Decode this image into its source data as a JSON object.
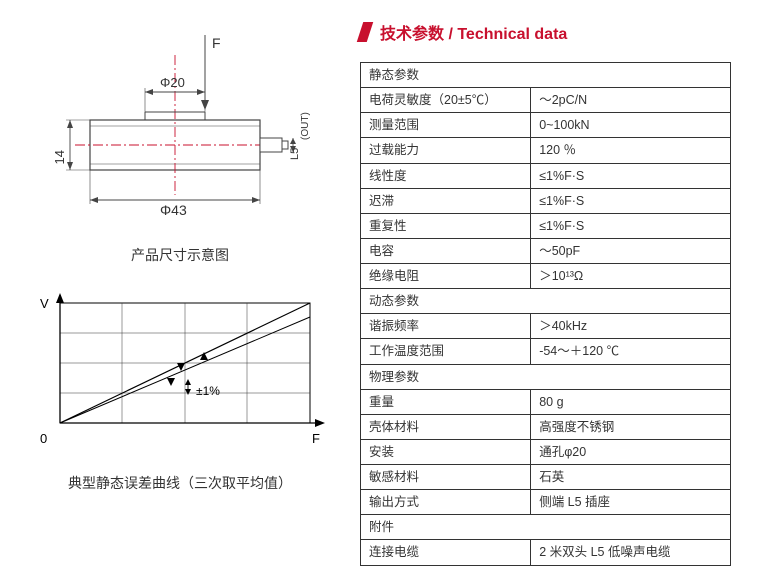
{
  "title": "技术参数 / Technical data",
  "dimension_diagram": {
    "caption": "产品尺寸示意图",
    "force_label": "F",
    "dim_top": "Φ20",
    "dim_bottom": "Φ43",
    "dim_height": "14",
    "dim_plug_h": "L5",
    "out_label": "(OUT)",
    "stroke": "#444444",
    "fill": "#ffffff",
    "centerline": "#c8102e"
  },
  "error_curve": {
    "caption": "典型静态误差曲线（三次取平均值）",
    "y_label": "V",
    "x_label": "F",
    "origin_label": "0",
    "tolerance_label": "±1%",
    "stroke": "#000000",
    "grid": "#333333"
  },
  "spec_table": {
    "sections": [
      {
        "header": "静态参数",
        "rows": [
          {
            "key": "电荷灵敏度（20±5℃）",
            "val": "～2pC/N"
          },
          {
            "key": "测量范围",
            "val": "0~100kN"
          },
          {
            "key": "过载能力",
            "val": "120 ％"
          },
          {
            "key": "线性度",
            "val": "≤1%F·S"
          },
          {
            "key": "迟滞",
            "val": "≤1%F·S"
          },
          {
            "key": "重复性",
            "val": "≤1%F·S"
          },
          {
            "key": "电容",
            "val": "～50pF"
          },
          {
            "key": "绝缘电阻",
            "val": "＞10¹³Ω"
          }
        ]
      },
      {
        "header": "动态参数",
        "rows": [
          {
            "key": "谐振频率",
            "val": "＞40kHz"
          },
          {
            "key": "工作温度范围",
            "val": "-54～＋120 ℃"
          }
        ]
      },
      {
        "header": "物理参数",
        "rows": [
          {
            "key": "重量",
            "val": "80 g"
          },
          {
            "key": "壳体材料",
            "val": "高强度不锈钢"
          },
          {
            "key": "安装",
            "val": "通孔φ20"
          },
          {
            "key": "敏感材料",
            "val": "石英"
          },
          {
            "key": "输出方式",
            "val": "侧端 L5 插座"
          }
        ]
      },
      {
        "header": "附件",
        "rows": [
          {
            "key": "连接电缆",
            "val": "2 米双头 L5 低噪声电缆"
          }
        ]
      }
    ]
  }
}
